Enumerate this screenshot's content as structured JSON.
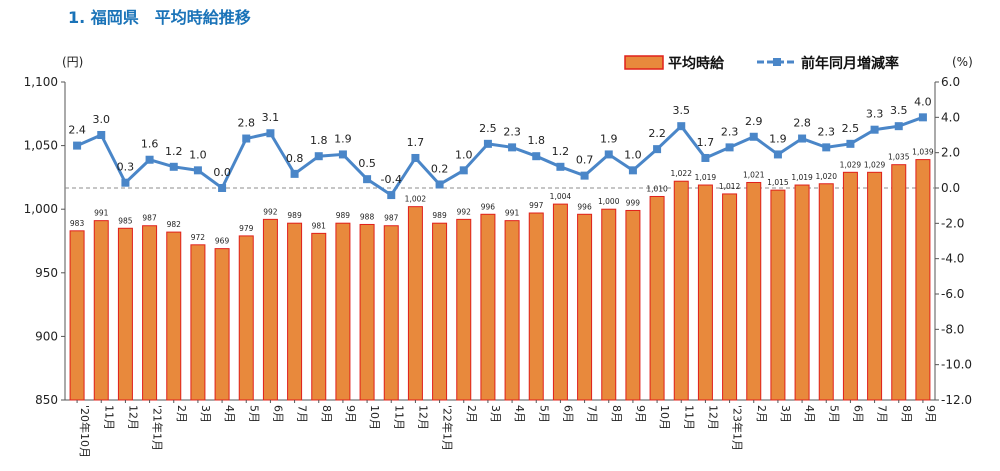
{
  "page": {
    "title": "1. 福岡県　平均時給推移"
  },
  "chart_data": {
    "type": "bar+line",
    "left_axis": {
      "unit": "(円)",
      "min": 850,
      "max": 1100,
      "step": 50,
      "ticks": [
        "850",
        "900",
        "950",
        "1,000",
        "1,050",
        "1,100"
      ]
    },
    "right_axis": {
      "unit": "(%)",
      "min": -12,
      "max": 6,
      "step": 2,
      "ticks": [
        "-12.0",
        "-10.0",
        "-8.0",
        "-6.0",
        "-4.0",
        "-2.0",
        "0.0",
        "2.0",
        "4.0",
        "6.0"
      ]
    },
    "categories": [
      "'20年10月",
      "11月",
      "12月",
      "'21年1月",
      "2月",
      "3月",
      "4月",
      "5月",
      "6月",
      "7月",
      "8月",
      "9月",
      "10月",
      "11月",
      "12月",
      "'22年1月",
      "2月",
      "3月",
      "4月",
      "5月",
      "6月",
      "7月",
      "8月",
      "9月",
      "10月",
      "11月",
      "12月",
      "'23年1月",
      "2月",
      "3月",
      "4月",
      "5月",
      "6月",
      "7月",
      "8月",
      "9月"
    ],
    "series": [
      {
        "name": "平均時給",
        "kind": "bar",
        "axis": "left",
        "color": "#e8893c",
        "edge": "#e0201b",
        "values": [
          983,
          991,
          985,
          987,
          982,
          972,
          969,
          979,
          992,
          989,
          981,
          989,
          988,
          987,
          1002,
          989,
          992,
          996,
          991,
          997,
          1004,
          996,
          1000,
          999,
          1010,
          1022,
          1019,
          1012,
          1021,
          1015,
          1019,
          1020,
          1029,
          1029,
          1035,
          1039
        ],
        "labels": [
          "983",
          "991",
          "985",
          "987",
          "982",
          "972",
          "969",
          "979",
          "992",
          "989",
          "981",
          "989",
          "988",
          "987",
          "1,002",
          "989",
          "992",
          "996",
          "991",
          "997",
          "1,004",
          "996",
          "1,000",
          "999",
          "1,010",
          "1,022",
          "1,019",
          "1,012",
          "1,021",
          "1,015",
          "1,019",
          "1,020",
          "1,029",
          "1,029",
          "1,035",
          "1,039"
        ]
      },
      {
        "name": "前年同月増減率",
        "kind": "line",
        "axis": "right",
        "color": "#4a86c8",
        "values": [
          2.4,
          3.0,
          0.3,
          1.6,
          1.2,
          1.0,
          0.0,
          2.8,
          3.1,
          0.8,
          1.8,
          1.9,
          0.5,
          -0.4,
          1.7,
          0.2,
          1.0,
          2.5,
          2.3,
          1.8,
          1.2,
          0.7,
          1.9,
          1.0,
          2.2,
          3.5,
          1.7,
          2.3,
          2.9,
          1.9,
          2.8,
          2.3,
          2.5,
          3.3,
          3.5,
          4.0
        ],
        "labels": [
          "2.4",
          "3.0",
          "0.3",
          "1.6",
          "1.2",
          "1.0",
          "0.0",
          "2.8",
          "3.1",
          "0.8",
          "1.8",
          "1.9",
          "0.5",
          "-0.4",
          "1.7",
          "0.2",
          "1.0",
          "2.5",
          "2.3",
          "1.8",
          "1.2",
          "0.7",
          "1.9",
          "1.0",
          "2.2",
          "3.5",
          "1.7",
          "2.3",
          "2.9",
          "1.9",
          "2.8",
          "2.3",
          "2.5",
          "3.3",
          "3.5",
          "4.0"
        ]
      }
    ],
    "legend": {
      "position": "top-right"
    },
    "reference_line": {
      "axis": "right",
      "value": 0,
      "style": "dashed"
    },
    "grid": false
  }
}
